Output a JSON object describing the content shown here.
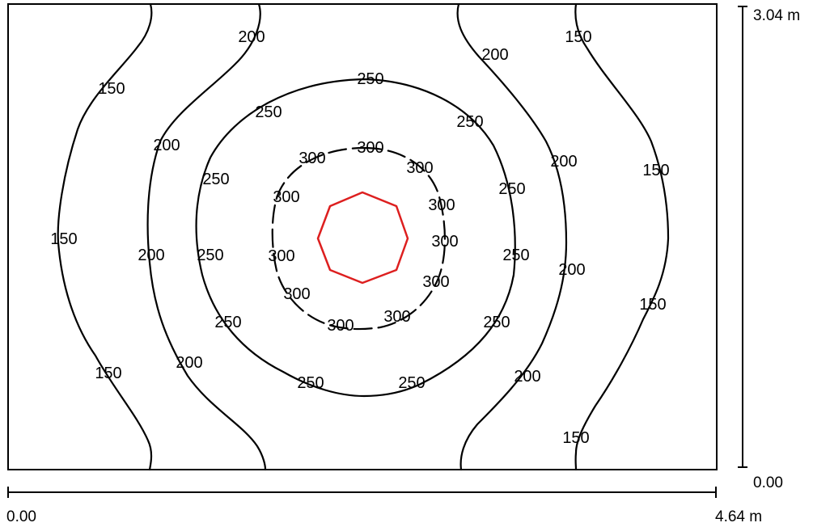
{
  "diagram": {
    "type": "isoline-plan",
    "x_axis": {
      "start_label": "0.00",
      "end_label": "4.64 m"
    },
    "y_axis": {
      "start_label": "0.00",
      "end_label": "3.04 m"
    },
    "luminaire_color": "#dd1f1f",
    "isoline_levels": [
      {
        "level": 150,
        "label": "150"
      },
      {
        "level": 200,
        "label": "200"
      },
      {
        "level": 250,
        "label": "250"
      },
      {
        "level": 300,
        "label": "300"
      }
    ]
  }
}
